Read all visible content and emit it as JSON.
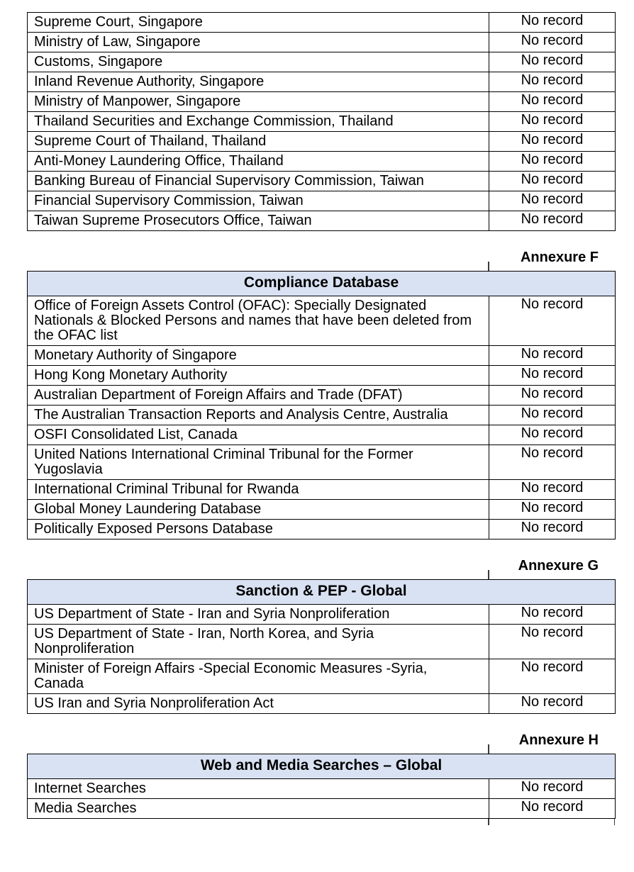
{
  "document": {
    "result_default": "No record",
    "colors": {
      "header_bg": "#d9e2f3",
      "border": "#000000",
      "text": "#000000"
    },
    "sections": [
      {
        "annexure": "",
        "title": "",
        "rows": [
          {
            "source": "Supreme Court, Singapore",
            "result": "No record"
          },
          {
            "source": "Ministry of Law, Singapore",
            "result": "No record"
          },
          {
            "source": "Customs, Singapore",
            "result": "No record"
          },
          {
            "source": "Inland Revenue Authority, Singapore",
            "result": "No record"
          },
          {
            "source": "Ministry of Manpower, Singapore",
            "result": "No record"
          },
          {
            "source": "Thailand Securities and Exchange Commission, Thailand",
            "result": "No record"
          },
          {
            "source": "Supreme Court of Thailand, Thailand",
            "result": "No record"
          },
          {
            "source": "Anti-Money Laundering Office, Thailand",
            "result": "No record"
          },
          {
            "source": "Banking Bureau of Financial Supervisory Commission, Taiwan",
            "result": "No record"
          },
          {
            "source": "Financial Supervisory Commission, Taiwan",
            "result": "No record"
          },
          {
            "source": "Taiwan Supreme Prosecutors Office, Taiwan",
            "result": "No record"
          }
        ]
      },
      {
        "annexure": "Annexure F",
        "title": "Compliance Database",
        "rows": [
          {
            "source": "Office of Foreign Assets Control (OFAC): Specially Designated\nNationals & Blocked Persons and names that have been deleted from\nthe OFAC list",
            "result": "No record"
          },
          {
            "source": "Monetary Authority of Singapore",
            "result": "No record"
          },
          {
            "source": "Hong Kong Monetary Authority",
            "result": "No record"
          },
          {
            "source": "Australian Department of Foreign Affairs and Trade (DFAT)",
            "result": "No record"
          },
          {
            "source": "The Australian Transaction Reports and Analysis Centre, Australia",
            "result": "No record"
          },
          {
            "source": "OSFI Consolidated List, Canada",
            "result": "No record"
          },
          {
            "source": "United Nations International Criminal Tribunal for the Former\nYugoslavia",
            "result": "No record"
          },
          {
            "source": "International Criminal Tribunal for Rwanda",
            "result": "No record"
          },
          {
            "source": "Global Money Laundering Database",
            "result": "No record"
          },
          {
            "source": "Politically Exposed Persons Database",
            "result": "No record"
          }
        ]
      },
      {
        "annexure": "Annexure G",
        "title": "Sanction & PEP - Global",
        "rows": [
          {
            "source": "US Department of State - Iran and Syria Nonproliferation",
            "result": "No record"
          },
          {
            "source": "US Department of State - Iran, North Korea, and Syria\nNonproliferation",
            "result": "No record"
          },
          {
            "source": "Minister of Foreign Affairs -Special Economic Measures -Syria,\nCanada",
            "result": "No record"
          },
          {
            "source": "US Iran and Syria Nonproliferation Act",
            "result": "No record"
          }
        ]
      },
      {
        "annexure": "Annexure H",
        "title": "Web and Media Searches – Global",
        "rows": [
          {
            "source": "Internet Searches",
            "result": "No record"
          },
          {
            "source": "Media Searches",
            "result": "No record"
          }
        ]
      }
    ]
  }
}
